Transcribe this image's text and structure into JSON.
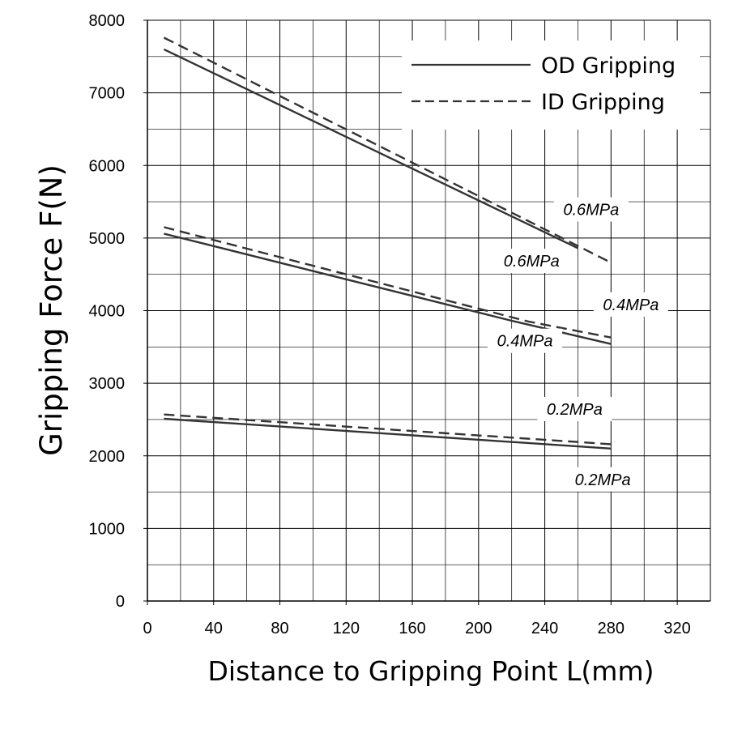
{
  "chart_data": {
    "type": "line",
    "title": "",
    "xlabel": "Distance to Gripping Point L(mm)",
    "ylabel": "Gripping Force F(N)",
    "xlim": [
      0,
      340
    ],
    "ylim": [
      0,
      8000
    ],
    "x_ticks": [
      "0",
      "40",
      "80",
      "120",
      "160",
      "200",
      "240",
      "280",
      "320"
    ],
    "y_ticks": [
      "0",
      "1000",
      "2000",
      "3000",
      "4000",
      "5000",
      "6000",
      "7000",
      "8000"
    ],
    "grid": true,
    "legend": {
      "position": "top-right",
      "entries": [
        {
          "label": "OD Gripping",
          "style": "solid"
        },
        {
          "label": "ID Gripping",
          "style": "dashed"
        }
      ]
    },
    "series": [
      {
        "name": "OD Gripping",
        "pressure": "0.6MPa",
        "style": "solid",
        "x": [
          10,
          260
        ],
        "y": [
          7600,
          4860
        ]
      },
      {
        "name": "ID Gripping",
        "pressure": "0.6MPa",
        "style": "dashed",
        "x": [
          10,
          280
        ],
        "y": [
          7760,
          4660
        ]
      },
      {
        "name": "OD Gripping",
        "pressure": "0.4MPa",
        "style": "solid",
        "x": [
          10,
          220,
          280
        ],
        "y": [
          5060,
          3860,
          3540
        ]
      },
      {
        "name": "ID Gripping",
        "pressure": "0.4MPa",
        "style": "dashed",
        "x": [
          10,
          230,
          280
        ],
        "y": [
          5150,
          3850,
          3630
        ]
      },
      {
        "name": "OD Gripping",
        "pressure": "0.2MPa",
        "style": "solid",
        "x": [
          10,
          280
        ],
        "y": [
          2510,
          2100
        ]
      },
      {
        "name": "ID Gripping",
        "pressure": "0.2MPa",
        "style": "dashed",
        "x": [
          10,
          280
        ],
        "y": [
          2570,
          2160
        ]
      }
    ],
    "annotations": [
      {
        "text": "0.6MPa",
        "x": 268,
        "y": 5350
      },
      {
        "text": "0.6MPa",
        "x": 232,
        "y": 4640
      },
      {
        "text": "0.4MPa",
        "x": 292,
        "y": 4040
      },
      {
        "text": "0.4MPa",
        "x": 228,
        "y": 3540
      },
      {
        "text": "0.2MPa",
        "x": 258,
        "y": 2600
      },
      {
        "text": "0.2MPa",
        "x": 275,
        "y": 1630
      }
    ],
    "line_color": "#333333"
  }
}
